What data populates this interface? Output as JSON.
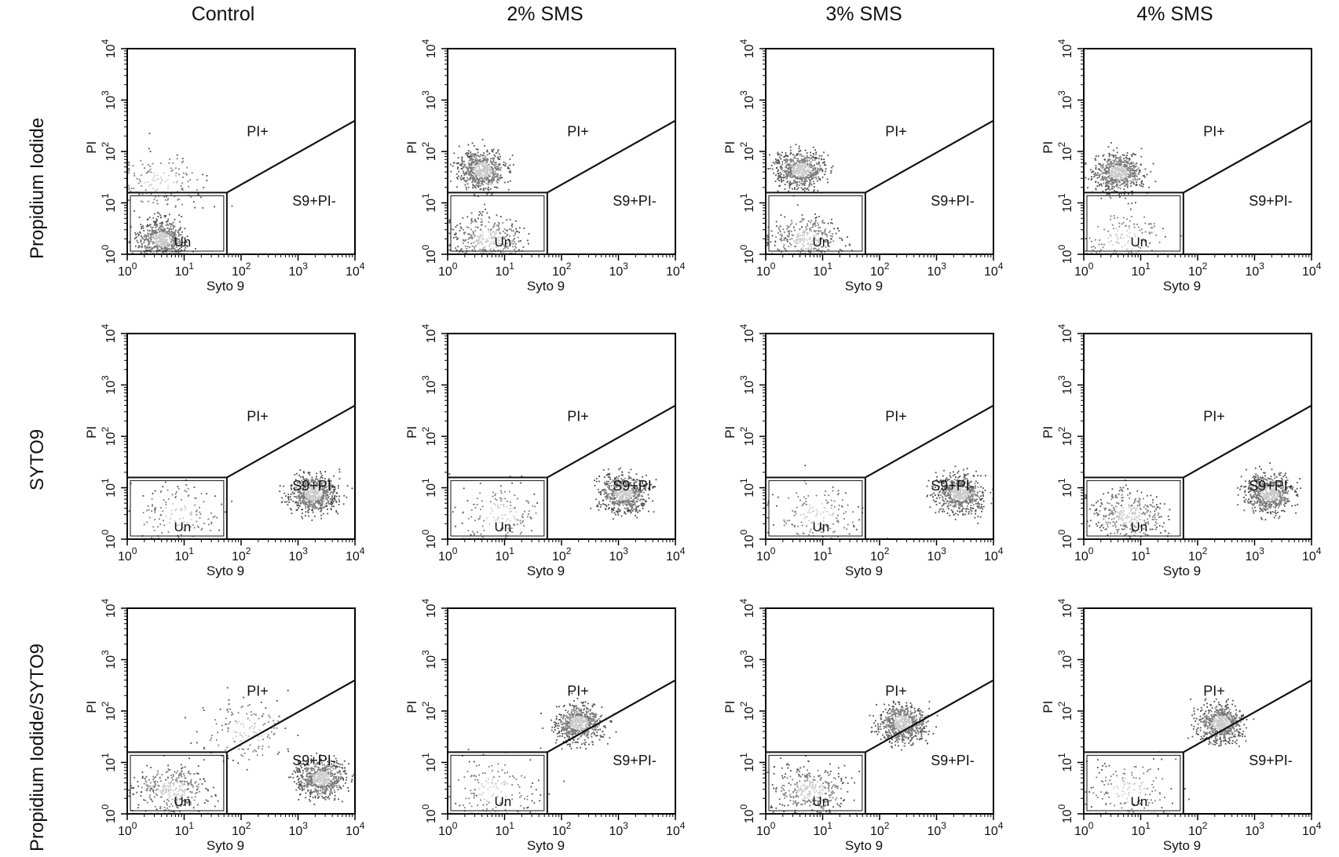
{
  "columns": [
    "Control",
    "2% SMS",
    "3% SMS",
    "4% SMS"
  ],
  "rows": [
    "Propidium Iodide",
    "SYTO9",
    "Propidium Iodide/SYTO9"
  ],
  "axes": {
    "x_label": "Syto 9",
    "y_label": "PI",
    "tick_base": "10",
    "tick_exponents": [
      "0",
      "1",
      "2",
      "3",
      "4"
    ]
  },
  "gates": {
    "pi_pos": "PI+",
    "syto_pos": "S9+PI-",
    "unstained": "Un"
  },
  "colors": {
    "density_dark": "#4d4d4d",
    "density_mid": "#7a7a7a",
    "density_light": "#c8c8c8",
    "gate_line": "#111111"
  },
  "chart_data": [
    {
      "type": "scatter",
      "scale": "log",
      "xlabel": "Syto 9",
      "ylabel": "PI",
      "xlim": [
        1,
        10000
      ],
      "ylim": [
        1,
        10000
      ],
      "row": "Propidium Iodide",
      "column": "Control",
      "populations": [
        {
          "gate": "Un",
          "x_center": 4,
          "y_center": 2,
          "relative_density": "high"
        },
        {
          "gate": "PI+",
          "x_center": 4,
          "y_center": 25,
          "relative_density": "low"
        }
      ]
    },
    {
      "type": "scatter",
      "scale": "log",
      "xlabel": "Syto 9",
      "ylabel": "PI",
      "xlim": [
        1,
        10000
      ],
      "ylim": [
        1,
        10000
      ],
      "row": "Propidium Iodide",
      "column": "2% SMS",
      "populations": [
        {
          "gate": "PI+",
          "x_center": 4,
          "y_center": 45,
          "relative_density": "high"
        },
        {
          "gate": "Un",
          "x_center": 5,
          "y_center": 2,
          "relative_density": "medium"
        }
      ]
    },
    {
      "type": "scatter",
      "scale": "log",
      "xlabel": "Syto 9",
      "ylabel": "PI",
      "xlim": [
        1,
        10000
      ],
      "ylim": [
        1,
        10000
      ],
      "row": "Propidium Iodide",
      "column": "3% SMS",
      "populations": [
        {
          "gate": "PI+",
          "x_center": 4,
          "y_center": 45,
          "relative_density": "high"
        },
        {
          "gate": "Un",
          "x_center": 5,
          "y_center": 2,
          "relative_density": "medium"
        }
      ]
    },
    {
      "type": "scatter",
      "scale": "log",
      "xlabel": "Syto 9",
      "ylabel": "PI",
      "xlim": [
        1,
        10000
      ],
      "ylim": [
        1,
        10000
      ],
      "row": "Propidium Iodide",
      "column": "4% SMS",
      "populations": [
        {
          "gate": "PI+",
          "x_center": 4,
          "y_center": 40,
          "relative_density": "high"
        },
        {
          "gate": "Un",
          "x_center": 5,
          "y_center": 2,
          "relative_density": "low"
        }
      ]
    },
    {
      "type": "scatter",
      "scale": "log",
      "xlabel": "Syto 9",
      "ylabel": "PI",
      "xlim": [
        1,
        10000
      ],
      "ylim": [
        1,
        10000
      ],
      "row": "SYTO9",
      "column": "Control",
      "populations": [
        {
          "gate": "S9+PI-",
          "x_center": 1800,
          "y_center": 8,
          "relative_density": "high"
        },
        {
          "gate": "Un",
          "x_center": 8,
          "y_center": 3,
          "relative_density": "low"
        }
      ]
    },
    {
      "type": "scatter",
      "scale": "log",
      "xlabel": "Syto 9",
      "ylabel": "PI",
      "xlim": [
        1,
        10000
      ],
      "ylim": [
        1,
        10000
      ],
      "row": "SYTO9",
      "column": "2% SMS",
      "populations": [
        {
          "gate": "S9+PI-",
          "x_center": 1200,
          "y_center": 8,
          "relative_density": "high"
        },
        {
          "gate": "Un",
          "x_center": 8,
          "y_center": 3,
          "relative_density": "low"
        }
      ]
    },
    {
      "type": "scatter",
      "scale": "log",
      "xlabel": "Syto 9",
      "ylabel": "PI",
      "xlim": [
        1,
        10000
      ],
      "ylim": [
        1,
        10000
      ],
      "row": "SYTO9",
      "column": "3% SMS",
      "populations": [
        {
          "gate": "S9+PI-",
          "x_center": 2500,
          "y_center": 8,
          "relative_density": "high"
        },
        {
          "gate": "Un",
          "x_center": 8,
          "y_center": 3,
          "relative_density": "low"
        }
      ]
    },
    {
      "type": "scatter",
      "scale": "log",
      "xlabel": "Syto 9",
      "ylabel": "PI",
      "xlim": [
        1,
        10000
      ],
      "ylim": [
        1,
        10000
      ],
      "row": "SYTO9",
      "column": "4% SMS",
      "populations": [
        {
          "gate": "S9+PI-",
          "x_center": 1800,
          "y_center": 8,
          "relative_density": "high"
        },
        {
          "gate": "Un",
          "x_center": 6,
          "y_center": 3,
          "relative_density": "medium"
        }
      ]
    },
    {
      "type": "scatter",
      "scale": "log",
      "xlabel": "Syto 9",
      "ylabel": "PI",
      "xlim": [
        1,
        10000
      ],
      "ylim": [
        1,
        10000
      ],
      "row": "Propidium Iodide/SYTO9",
      "column": "Control",
      "populations": [
        {
          "gate": "S9+PI-",
          "x_center": 2500,
          "y_center": 5,
          "relative_density": "high"
        },
        {
          "gate": "Un",
          "x_center": 6,
          "y_center": 3,
          "relative_density": "medium"
        },
        {
          "gate": "PI+",
          "x_center": 120,
          "y_center": 40,
          "relative_density": "low"
        }
      ]
    },
    {
      "type": "scatter",
      "scale": "log",
      "xlabel": "Syto 9",
      "ylabel": "PI",
      "xlim": [
        1,
        10000
      ],
      "ylim": [
        1,
        10000
      ],
      "row": "Propidium Iodide/SYTO9",
      "column": "2% SMS",
      "populations": [
        {
          "gate": "PI+",
          "x_center": 200,
          "y_center": 60,
          "relative_density": "high"
        },
        {
          "gate": "Un",
          "x_center": 6,
          "y_center": 3,
          "relative_density": "low"
        }
      ]
    },
    {
      "type": "scatter",
      "scale": "log",
      "xlabel": "Syto 9",
      "ylabel": "PI",
      "xlim": [
        1,
        10000
      ],
      "ylim": [
        1,
        10000
      ],
      "row": "Propidium Iodide/SYTO9",
      "column": "3% SMS",
      "populations": [
        {
          "gate": "PI+",
          "x_center": 250,
          "y_center": 60,
          "relative_density": "high"
        },
        {
          "gate": "Un",
          "x_center": 6,
          "y_center": 3,
          "relative_density": "medium"
        }
      ]
    },
    {
      "type": "scatter",
      "scale": "log",
      "xlabel": "Syto 9",
      "ylabel": "PI",
      "xlim": [
        1,
        10000
      ],
      "ylim": [
        1,
        10000
      ],
      "row": "Propidium Iodide/SYTO9",
      "column": "4% SMS",
      "populations": [
        {
          "gate": "PI+",
          "x_center": 250,
          "y_center": 60,
          "relative_density": "high"
        },
        {
          "gate": "Un",
          "x_center": 6,
          "y_center": 3,
          "relative_density": "low"
        }
      ]
    }
  ]
}
